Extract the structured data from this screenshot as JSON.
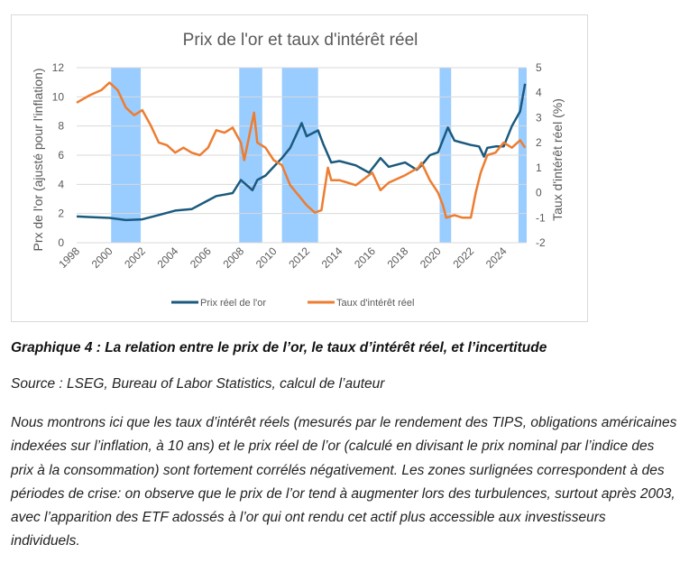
{
  "chart_data": {
    "type": "line",
    "title": "Prix de l'or et taux d'intérêt réel",
    "ylabel": "Prx de l'or (ajusté pour l'inflation)",
    "y2label": "Taux d'intérêt réel (%)",
    "ylim": [
      0,
      12
    ],
    "y2lim": [
      -2,
      5
    ],
    "xlim": [
      1998,
      2025.4
    ],
    "yticks": [
      "0",
      "2",
      "4",
      "6",
      "8",
      "10",
      "12"
    ],
    "y2ticks": [
      "-2",
      "-1",
      "0",
      "1",
      "2",
      "3",
      "4",
      "5"
    ],
    "xticks": [
      "1998",
      "2000",
      "2002",
      "2004",
      "2006",
      "2008",
      "2010",
      "2012",
      "2014",
      "2016",
      "2018",
      "2020",
      "2022",
      "2024"
    ],
    "grid": true,
    "legend": "bottom",
    "shaded_periods": [
      [
        2000.1,
        2001.9
      ],
      [
        2007.9,
        2009.3
      ],
      [
        2010.5,
        2012.7
      ],
      [
        2020.1,
        2020.8
      ],
      [
        2024.9,
        2025.4
      ]
    ],
    "colors": {
      "gold": "#1b5a7e",
      "rate": "#ed7d31",
      "shade": "#99ccff",
      "grid": "#d9d9d9"
    },
    "series": [
      {
        "name": "Prix réel de l'or",
        "axis": "left",
        "x": [
          1998,
          1999,
          2000,
          2001,
          2002,
          2003,
          2004,
          2005,
          2006,
          2006.5,
          2007,
          2007.5,
          2008,
          2008.7,
          2009,
          2009.5,
          2010,
          2010.5,
          2011,
          2011.7,
          2012,
          2012.7,
          2013,
          2013.5,
          2014,
          2015,
          2015.8,
          2016.5,
          2017,
          2018,
          2018.7,
          2019,
          2019.5,
          2020,
          2020.6,
          2021,
          2022,
          2022.5,
          2022.8,
          2023,
          2023.5,
          2024,
          2024.5,
          2025,
          2025.3
        ],
        "y": [
          1.8,
          1.75,
          1.7,
          1.55,
          1.6,
          1.9,
          2.2,
          2.3,
          2.9,
          3.2,
          3.3,
          3.4,
          4.3,
          3.6,
          4.3,
          4.6,
          5.2,
          5.8,
          6.5,
          8.2,
          7.3,
          7.7,
          6.8,
          5.5,
          5.6,
          5.3,
          4.8,
          5.8,
          5.2,
          5.5,
          5.0,
          5.3,
          6.0,
          6.2,
          7.9,
          7.0,
          6.7,
          6.6,
          5.9,
          6.5,
          6.6,
          6.6,
          8.0,
          9.0,
          10.9
        ]
      },
      {
        "name": "Taux d'intérêt réel",
        "axis": "right",
        "x": [
          1998,
          1998.8,
          1999.5,
          2000,
          2000.5,
          2001,
          2001.5,
          2002,
          2002.5,
          2003,
          2003.5,
          2004,
          2004.5,
          2005,
          2005.5,
          2006,
          2006.5,
          2007,
          2007.5,
          2008,
          2008.2,
          2008.8,
          2009,
          2009.5,
          2010,
          2010.5,
          2011,
          2011.5,
          2012,
          2012.5,
          2012.9,
          2013.3,
          2013.5,
          2014,
          2015,
          2016,
          2016.5,
          2017,
          2018,
          2018.8,
          2019,
          2019.5,
          2020,
          2020.3,
          2020.5,
          2021,
          2021.5,
          2022,
          2022.3,
          2022.6,
          2023,
          2023.5,
          2024,
          2024.5,
          2025,
          2025.3
        ],
        "y": [
          3.6,
          3.9,
          4.1,
          4.4,
          4.1,
          3.4,
          3.1,
          3.3,
          2.7,
          2.0,
          1.9,
          1.6,
          1.8,
          1.6,
          1.5,
          1.8,
          2.5,
          2.4,
          2.6,
          2.0,
          1.3,
          3.2,
          2.0,
          1.8,
          1.3,
          1.1,
          0.3,
          -0.1,
          -0.5,
          -0.8,
          -0.7,
          1.0,
          0.5,
          0.5,
          0.3,
          0.8,
          0.1,
          0.4,
          0.7,
          1.0,
          1.2,
          0.5,
          0.0,
          -0.5,
          -1.0,
          -0.9,
          -1.0,
          -1.0,
          0.0,
          0.8,
          1.5,
          1.6,
          2.0,
          1.8,
          2.1,
          1.8
        ]
      }
    ]
  },
  "caption": "Graphique 4 : La relation entre le prix de l’or, le taux d’intérêt réel, et l’incertitude",
  "source": "Source : LSEG, Bureau of Labor Statistics, calcul de l’auteur",
  "paragraph": "Nous montrons ici que les taux d’intérêt réels (mesurés par le rendement des TIPS, obligations américaines indexées sur l’inflation, à 10 ans) et le prix réel de l’or (calculé en divisant le prix nominal par l’indice des prix à la consommation) sont fortement corrélés négativement. Les zones surlignées correspondent à des périodes de crise: on observe que le prix de l’or tend à augmenter lors des turbulences, surtout après 2003, avec l’apparition des ETF adossés à l’or qui ont rendu cet actif plus accessible aux investisseurs individuels."
}
